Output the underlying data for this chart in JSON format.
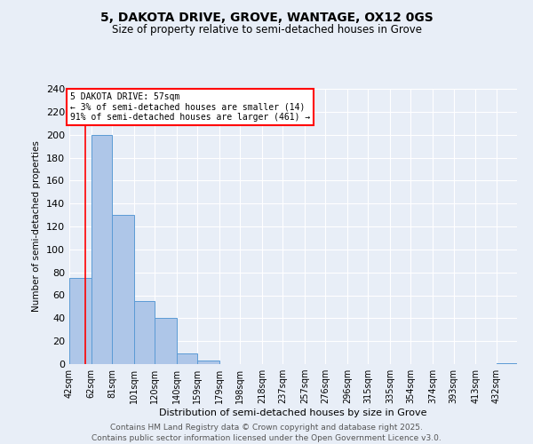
{
  "title": "5, DAKOTA DRIVE, GROVE, WANTAGE, OX12 0GS",
  "subtitle": "Size of property relative to semi-detached houses in Grove",
  "xlabel": "Distribution of semi-detached houses by size in Grove",
  "ylabel": "Number of semi-detached properties",
  "bin_labels": [
    "42sqm",
    "62sqm",
    "81sqm",
    "101sqm",
    "120sqm",
    "140sqm",
    "159sqm",
    "179sqm",
    "198sqm",
    "218sqm",
    "237sqm",
    "257sqm",
    "276sqm",
    "296sqm",
    "315sqm",
    "335sqm",
    "354sqm",
    "374sqm",
    "393sqm",
    "413sqm",
    "432sqm"
  ],
  "bin_edges": [
    42,
    62,
    81,
    101,
    120,
    140,
    159,
    179,
    198,
    218,
    237,
    257,
    276,
    296,
    315,
    335,
    354,
    374,
    393,
    413,
    432
  ],
  "bar_heights": [
    75,
    200,
    130,
    55,
    40,
    9,
    3,
    0,
    0,
    0,
    0,
    0,
    0,
    0,
    0,
    0,
    0,
    0,
    0,
    0,
    1
  ],
  "bar_color": "#aec6e8",
  "bar_edge_color": "#5b9bd5",
  "red_line_x": 57,
  "annotation_title": "5 DAKOTA DRIVE: 57sqm",
  "annotation_line1": "← 3% of semi-detached houses are smaller (14)",
  "annotation_line2": "91% of semi-detached houses are larger (461) →",
  "ylim": [
    0,
    240
  ],
  "yticks": [
    0,
    20,
    40,
    60,
    80,
    100,
    120,
    140,
    160,
    180,
    200,
    220,
    240
  ],
  "background_color": "#e8eef7",
  "grid_color": "#ffffff",
  "footer_line1": "Contains HM Land Registry data © Crown copyright and database right 2025.",
  "footer_line2": "Contains public sector information licensed under the Open Government Licence v3.0."
}
